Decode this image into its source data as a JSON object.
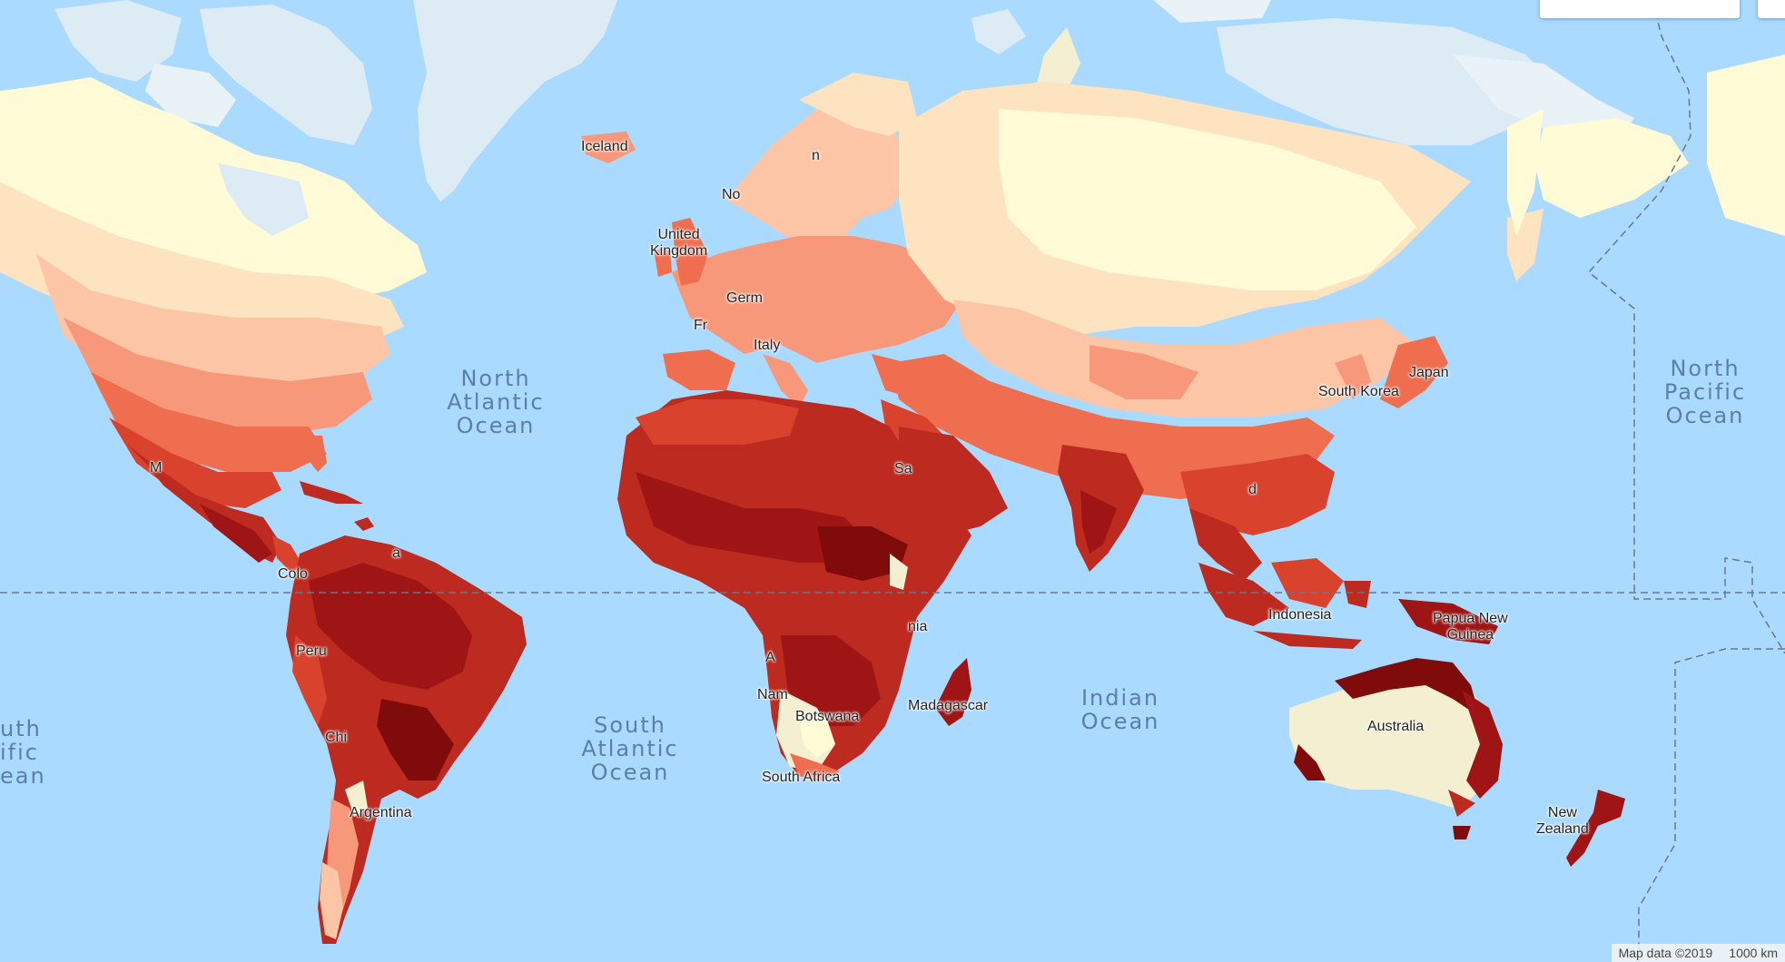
{
  "map": {
    "colors": {
      "ocean": "#aadaff",
      "ice": "#dcebf4",
      "ice_light": "#e8f2f7",
      "scale": [
        "#fffbd7",
        "#fde3c0",
        "#fcc6a6",
        "#f8987a",
        "#ef6e50",
        "#d9432e",
        "#bd2a1f",
        "#9f1414",
        "#7f0b0b"
      ]
    },
    "ocean_labels": {
      "north_atlantic": "North\nAtlantic\nOcean",
      "south_atlantic": "South\nAtlantic\nOcean",
      "indian": "Indian\nOcean",
      "north_pacific": "North\nPacific\nOcean",
      "south_pacific_partial": "uth\nific\nean"
    },
    "country_labels": {
      "iceland": "Iceland",
      "norway": "No",
      "sweden": "n",
      "uk": "United\nKingdom",
      "germany": "Germ",
      "france": "Fr",
      "italy": "Italy",
      "japan": "Japan",
      "south_korea": "South Korea",
      "mexico": "M",
      "colombia": "Colo",
      "venezuela": "a",
      "peru": "Peru",
      "chile": "Chi",
      "argentina": "Argentina",
      "saudi": "Sa",
      "kenya": "nia",
      "angola": "A",
      "namibia": "Nam",
      "botswana": "Botswana",
      "south_africa": "South Africa",
      "madagascar": "Madagascar",
      "indonesia": "Indonesia",
      "png": "Papua New\nGuinea",
      "australia": "Australia",
      "new_zealand": "New\nZealand",
      "thailand": "d"
    },
    "attribution": {
      "map_data": "Map data ©2019",
      "scale": "1000 km"
    }
  }
}
